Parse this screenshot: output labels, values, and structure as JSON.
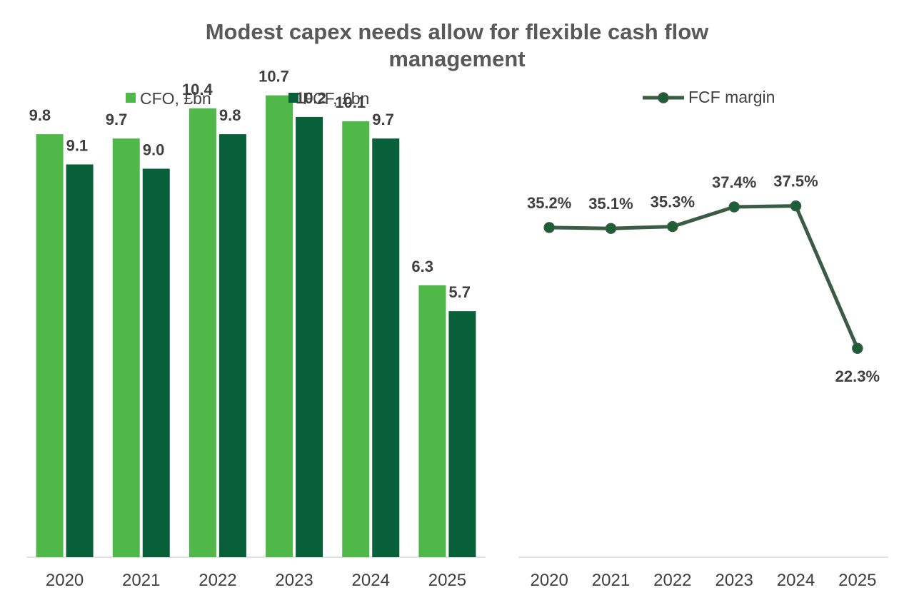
{
  "title_lines": [
    "Modest capex needs allow for flexible cash flow",
    "management"
  ],
  "colors": {
    "cfo": "#50b848",
    "fcf": "#08603b",
    "margin_line": "#3a5c45",
    "margin_marker": "#1d5e36",
    "axis": "#d9d9d9"
  },
  "chart_data": [
    {
      "type": "bar",
      "categories": [
        "2020",
        "2021",
        "2022",
        "2023",
        "2024",
        "2025"
      ],
      "series": [
        {
          "name": "CFO, £bn",
          "values": [
            9.8,
            9.7,
            10.4,
            10.7,
            10.1,
            6.3
          ],
          "labels": [
            "9.8",
            "9.7",
            "10.4",
            "10.7",
            "10.1",
            "6.3"
          ]
        },
        {
          "name": "FCF, £bn",
          "values": [
            9.1,
            9.0,
            9.8,
            10.2,
            9.7,
            5.7
          ],
          "labels": [
            "9.1",
            "9.0",
            "9.8",
            "10.2",
            "9.7",
            "5.7"
          ]
        }
      ],
      "ylim": [
        0,
        12.0
      ],
      "grid": false,
      "legend": "top"
    },
    {
      "type": "line",
      "categories": [
        "2020",
        "2021",
        "2022",
        "2023",
        "2024",
        "2025"
      ],
      "series": [
        {
          "name": "FCF margin",
          "values": [
            35.2,
            35.1,
            35.3,
            37.4,
            37.5,
            22.3
          ],
          "labels": [
            "35.2%",
            "35.1%",
            "35.3%",
            "37.4%",
            "37.5%",
            "22.3%"
          ]
        }
      ],
      "ylim": [
        0,
        55.3
      ],
      "grid": false,
      "legend": "top"
    }
  ]
}
